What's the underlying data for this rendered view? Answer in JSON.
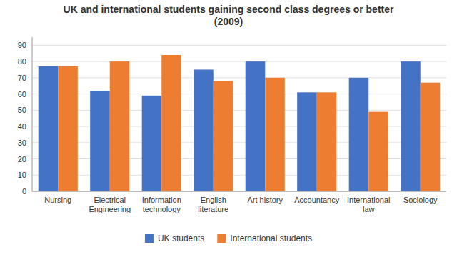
{
  "chart_data": {
    "type": "bar",
    "title": "UK and international students gaining second class degrees or better\n(2009)",
    "categories": [
      "Nursing",
      "Electrical\nEngineering",
      "Information\ntechnology",
      "English\nliterature",
      "Art history",
      "Accountancy",
      "International\nlaw",
      "Sociology"
    ],
    "series": [
      {
        "name": "UK students",
        "color": "#4472c4",
        "values": [
          77,
          62,
          59,
          75,
          80,
          61,
          70,
          80
        ]
      },
      {
        "name": "International students",
        "color": "#ed7d31",
        "values": [
          77,
          80,
          84,
          68,
          70,
          61,
          49,
          67
        ]
      }
    ],
    "ylim": [
      0,
      95
    ],
    "yticks": [
      0,
      10,
      20,
      30,
      40,
      50,
      60,
      70,
      80,
      90
    ],
    "grid": true,
    "legend": "bottom"
  }
}
